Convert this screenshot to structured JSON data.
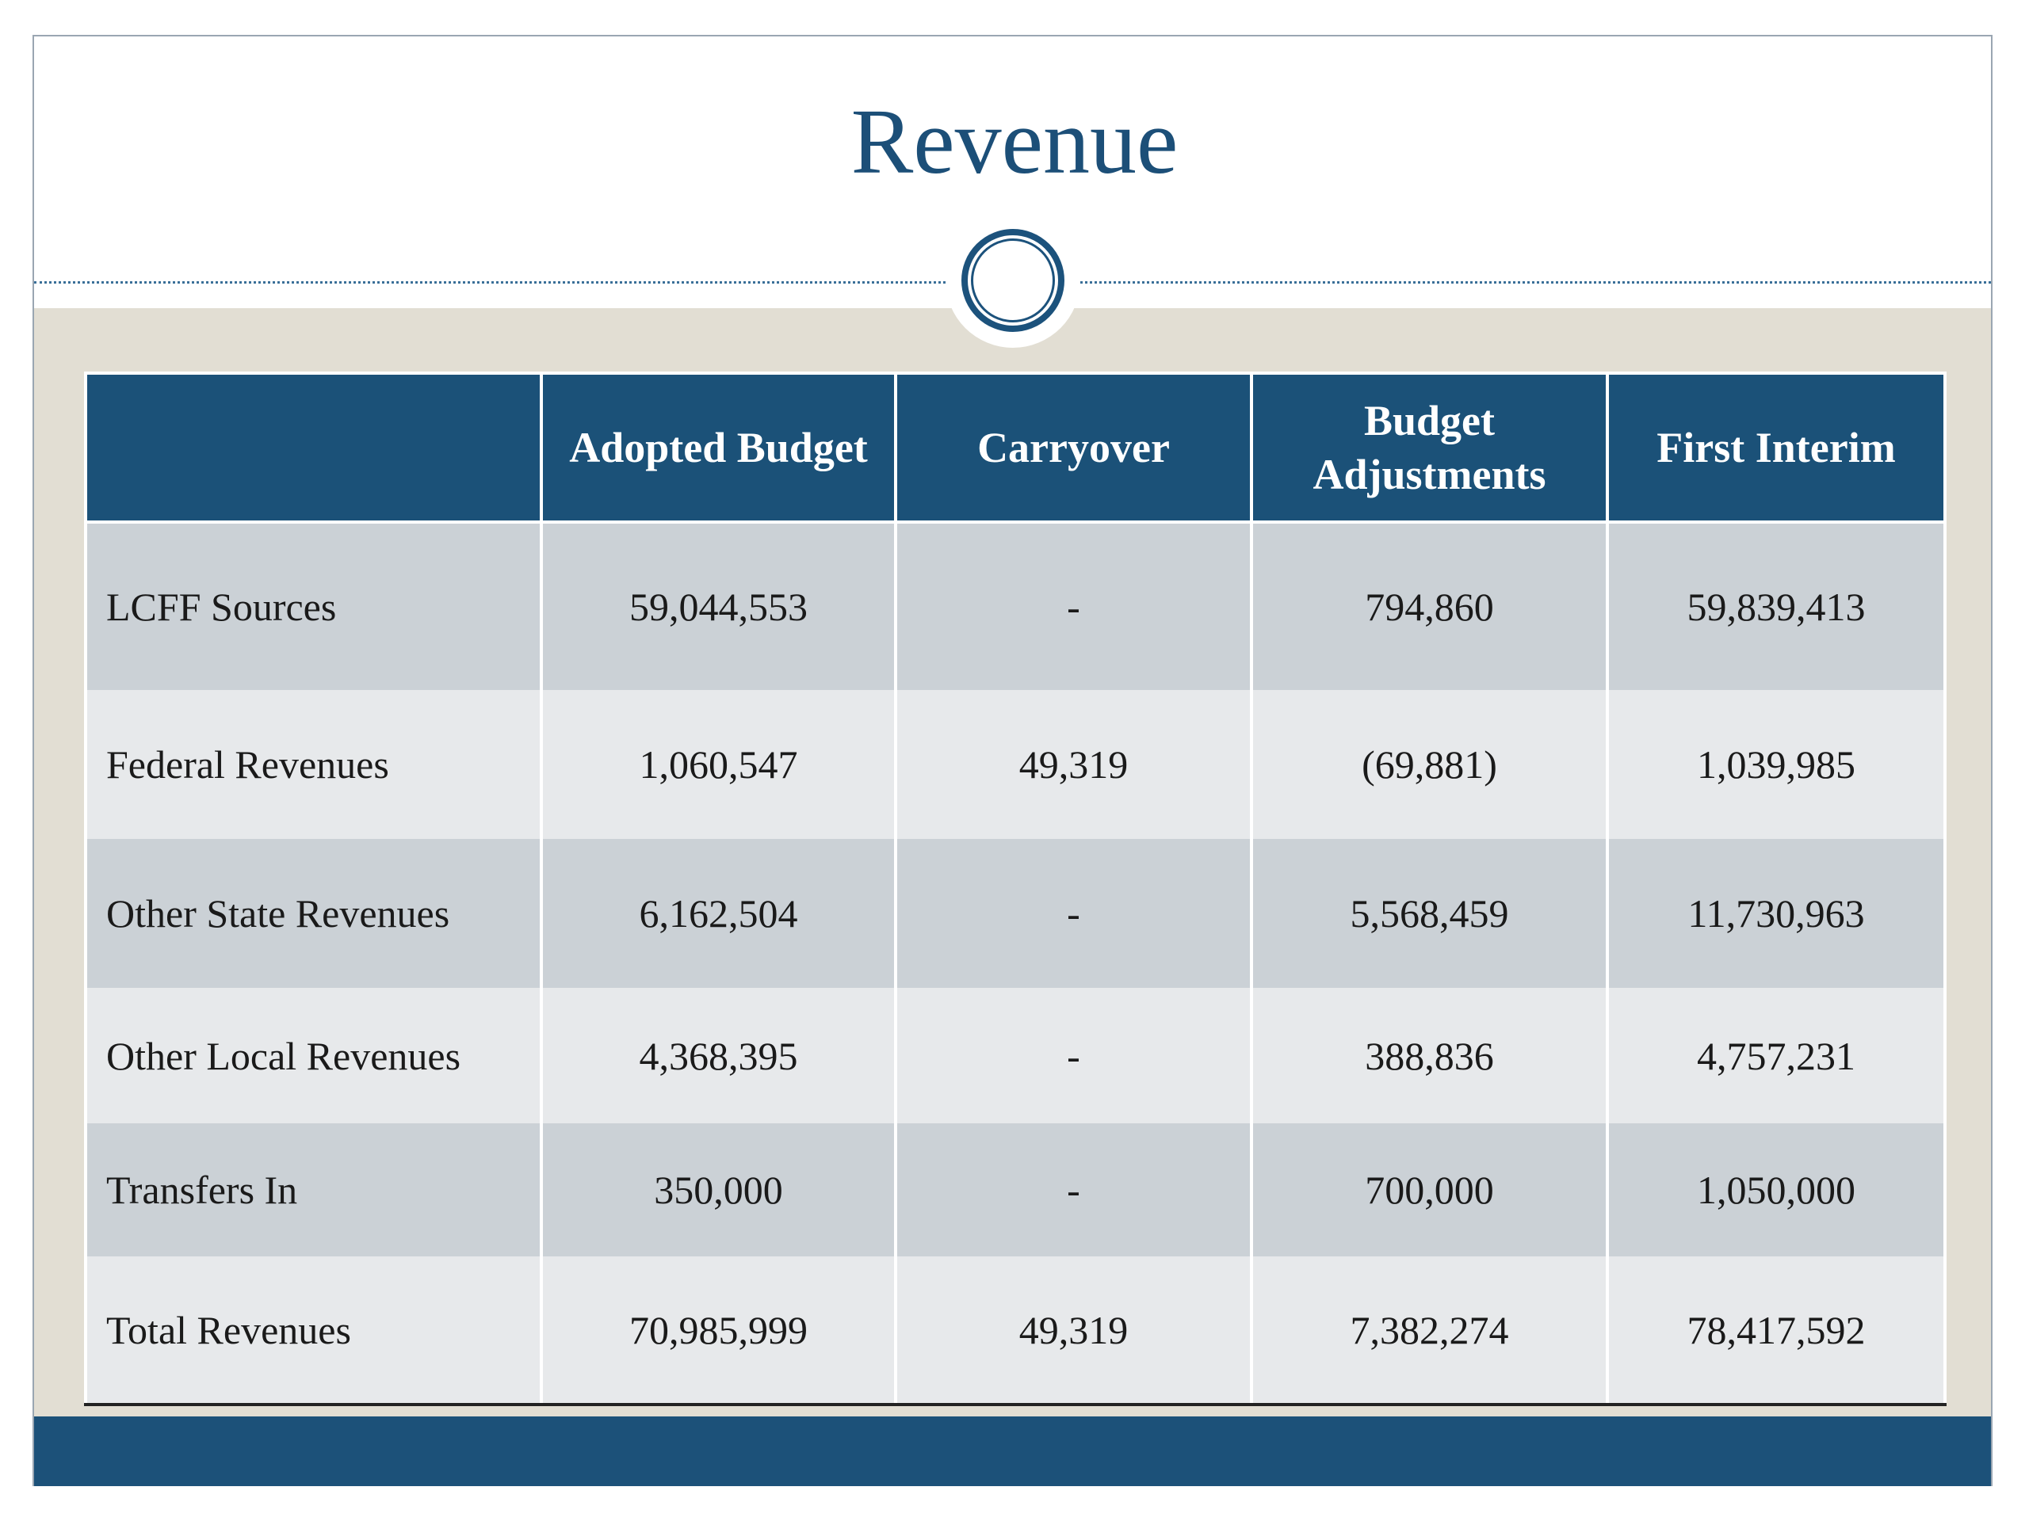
{
  "title": "Revenue",
  "table": {
    "columns": [
      "Adopted Budget",
      "Carryover",
      "Budget Adjustments",
      "First Interim"
    ],
    "rows": [
      {
        "label": "LCFF Sources",
        "values": [
          "59,044,553",
          "-",
          "794,860",
          "59,839,413"
        ]
      },
      {
        "label": "Federal Revenues",
        "values": [
          "1,060,547",
          "49,319",
          "(69,881)",
          "1,039,985"
        ]
      },
      {
        "label": "Other State Revenues",
        "values": [
          "6,162,504",
          "-",
          "5,568,459",
          "11,730,963"
        ]
      },
      {
        "label": "Other Local Revenues",
        "values": [
          "4,368,395",
          "-",
          "388,836",
          "4,757,231"
        ]
      },
      {
        "label": "Transfers In",
        "values": [
          "350,000",
          "-",
          "700,000",
          "1,050,000"
        ]
      },
      {
        "label": "Total Revenues",
        "values": [
          "70,985,999",
          "49,319",
          "7,382,274",
          "78,417,592"
        ]
      }
    ]
  }
}
